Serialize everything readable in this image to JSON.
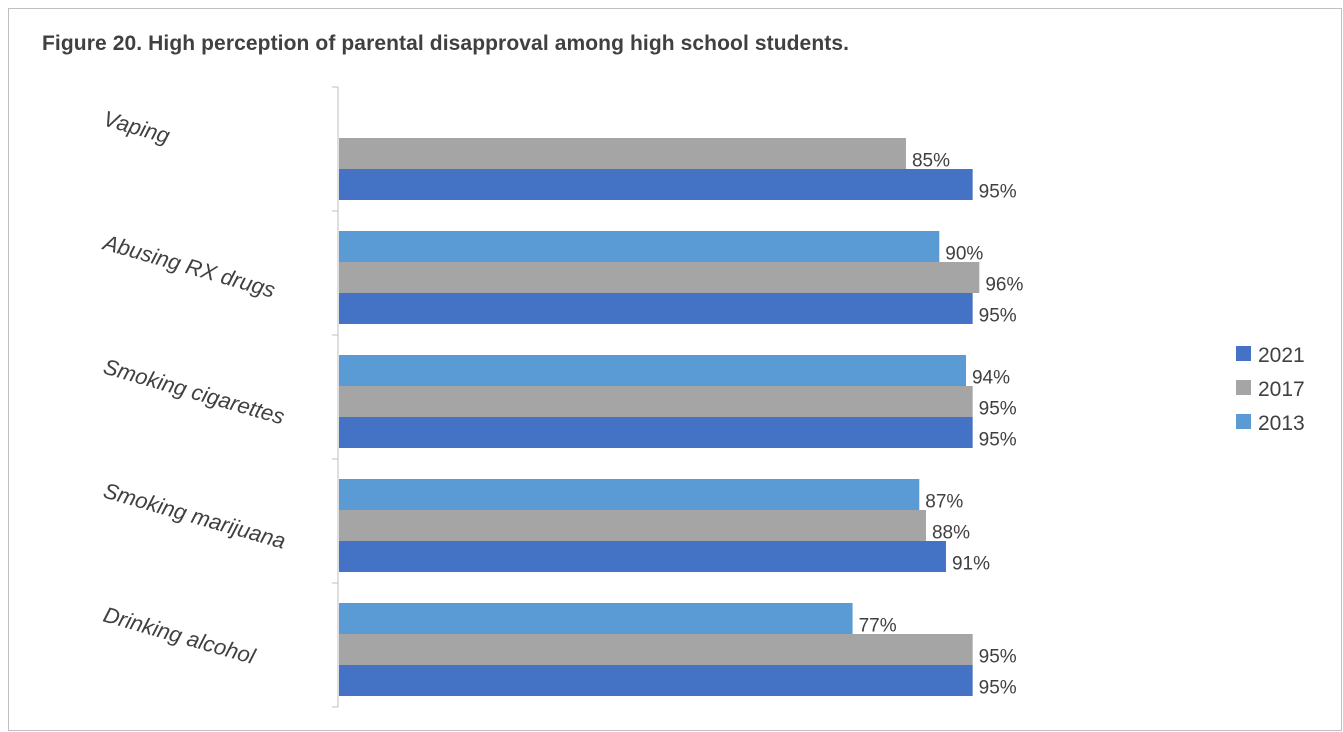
{
  "chart_data": {
    "type": "bar",
    "orientation": "horizontal",
    "title": "Figure 20. High perception of parental disapproval among high school students.",
    "categories": [
      "Vaping",
      "Abusing RX drugs",
      "Smoking cigarettes",
      "Smoking marijuana",
      "Drinking alcohol"
    ],
    "series": [
      {
        "name": "2021",
        "color": "#4472C4",
        "values": [
          95,
          95,
          95,
          91,
          95
        ]
      },
      {
        "name": "2017",
        "color": "#A5A5A5",
        "values": [
          85,
          96,
          95,
          88,
          95
        ]
      },
      {
        "name": "2013",
        "color": "#5B9BD5",
        "values": [
          null,
          90,
          94,
          87,
          77
        ]
      }
    ],
    "value_suffix": "%",
    "xlim": [
      0,
      100
    ],
    "legend_position": "right",
    "grid": false
  }
}
